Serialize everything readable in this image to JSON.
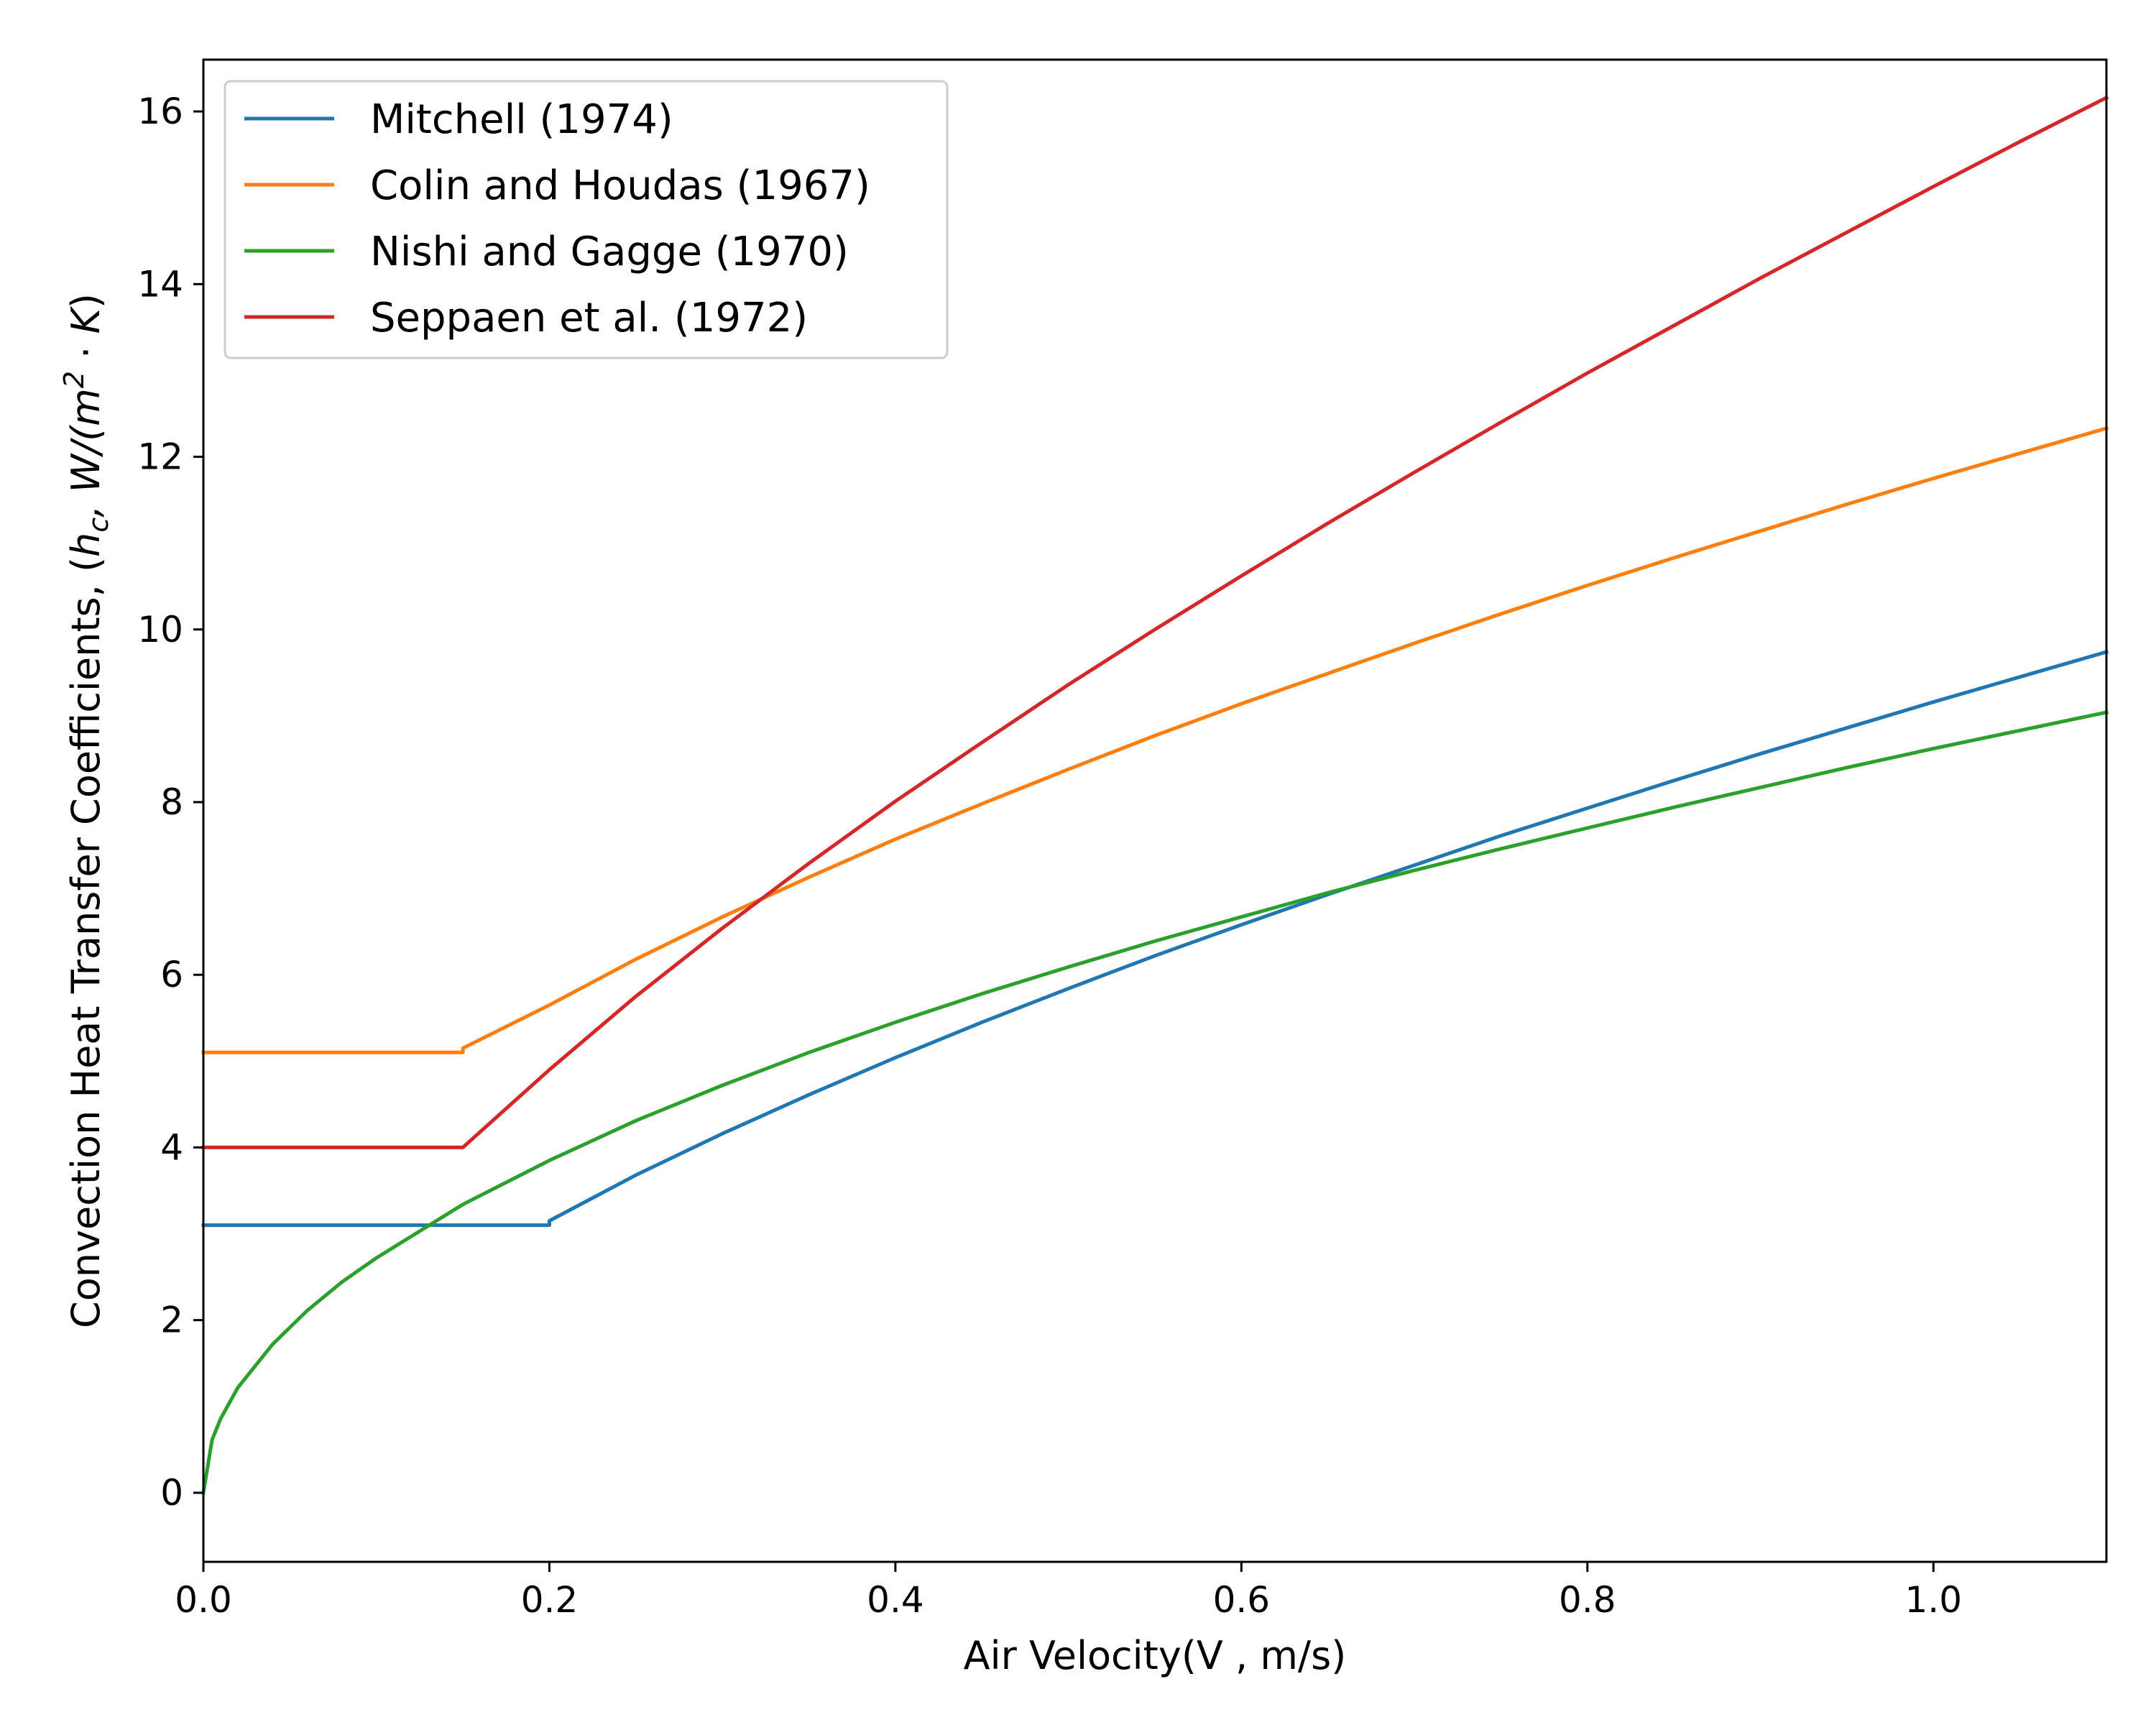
{
  "chart_data": {
    "type": "line",
    "title": "",
    "xlabel": "Air Velocity(V , m/s)",
    "ylabel": {
      "prefix": "Convection Heat Transfer Coefficients, (",
      "h": "h",
      "h_sub": "c",
      "mid": ", W/(m",
      "sup": "2",
      "dot": " · ",
      "K": "K",
      "suffix": ")"
    },
    "xlim": [
      0.0,
      1.1
    ],
    "ylim": [
      -0.8,
      16.6
    ],
    "xticks": [
      0.0,
      0.2,
      0.4,
      0.6,
      0.8,
      1.0
    ],
    "xtick_labels": [
      "0.0",
      "0.2",
      "0.4",
      "0.6",
      "0.8",
      "1.0"
    ],
    "yticks": [
      0,
      2,
      4,
      6,
      8,
      10,
      12,
      14,
      16
    ],
    "ytick_labels": [
      "0",
      "2",
      "4",
      "6",
      "8",
      "10",
      "12",
      "14",
      "16"
    ],
    "grid": false,
    "legend_position": "top-left",
    "series": [
      {
        "name": "Mitchell (1974)",
        "color": "#1f77b4",
        "x": [
          0.0,
          0.2,
          0.2,
          0.25,
          0.3,
          0.35,
          0.4,
          0.45,
          0.5,
          0.55,
          0.6,
          0.65,
          0.7,
          0.75,
          0.8,
          0.85,
          0.9,
          0.95,
          1.0,
          1.05,
          1.1
        ],
        "y": [
          3.1,
          3.1,
          3.15,
          3.68,
          4.16,
          4.61,
          5.04,
          5.45,
          5.84,
          6.22,
          6.58,
          6.93,
          7.27,
          7.61,
          7.93,
          8.25,
          8.56,
          8.86,
          9.16,
          9.45,
          9.74
        ]
      },
      {
        "name": "Colin and Houdas (1967)",
        "color": "#ff7f0e",
        "x": [
          0.0,
          0.15,
          0.15,
          0.2,
          0.25,
          0.3,
          0.35,
          0.4,
          0.45,
          0.5,
          0.55,
          0.6,
          0.65,
          0.7,
          0.75,
          0.8,
          0.85,
          0.9,
          0.95,
          1.0,
          1.05,
          1.1
        ],
        "y": [
          5.1,
          5.1,
          5.15,
          5.65,
          6.18,
          6.67,
          7.13,
          7.57,
          7.98,
          8.38,
          8.77,
          9.14,
          9.49,
          9.84,
          10.18,
          10.51,
          10.83,
          11.14,
          11.45,
          11.75,
          12.04,
          12.33
        ]
      },
      {
        "name": "Nishi and Gagge (1970)",
        "color": "#2ca02c",
        "x": [
          0.0,
          0.005,
          0.01,
          0.02,
          0.04,
          0.06,
          0.08,
          0.1,
          0.15,
          0.2,
          0.25,
          0.3,
          0.35,
          0.4,
          0.45,
          0.5,
          0.55,
          0.6,
          0.65,
          0.7,
          0.75,
          0.8,
          0.85,
          0.9,
          0.95,
          1.0,
          1.05,
          1.1
        ],
        "y": [
          0.0,
          0.61,
          0.86,
          1.22,
          1.72,
          2.11,
          2.44,
          2.72,
          3.34,
          3.85,
          4.31,
          4.72,
          5.1,
          5.45,
          5.78,
          6.09,
          6.39,
          6.67,
          6.95,
          7.21,
          7.46,
          7.7,
          7.94,
          8.17,
          8.4,
          8.62,
          8.83,
          9.04
        ]
      },
      {
        "name": "Seppaen et al. (1972)",
        "color": "#d62728",
        "x": [
          0.0,
          0.15,
          0.15,
          0.2,
          0.25,
          0.3,
          0.35,
          0.4,
          0.45,
          0.5,
          0.55,
          0.6,
          0.65,
          0.7,
          0.75,
          0.8,
          0.85,
          0.9,
          0.95,
          1.0,
          1.05,
          1.1
        ],
        "y": [
          4.0,
          4.0,
          4.0,
          4.9,
          5.75,
          6.54,
          7.29,
          8.01,
          8.69,
          9.36,
          10.0,
          10.62,
          11.23,
          11.82,
          12.4,
          12.97,
          13.52,
          14.07,
          14.6,
          15.13,
          15.65,
          16.16
        ]
      }
    ]
  }
}
